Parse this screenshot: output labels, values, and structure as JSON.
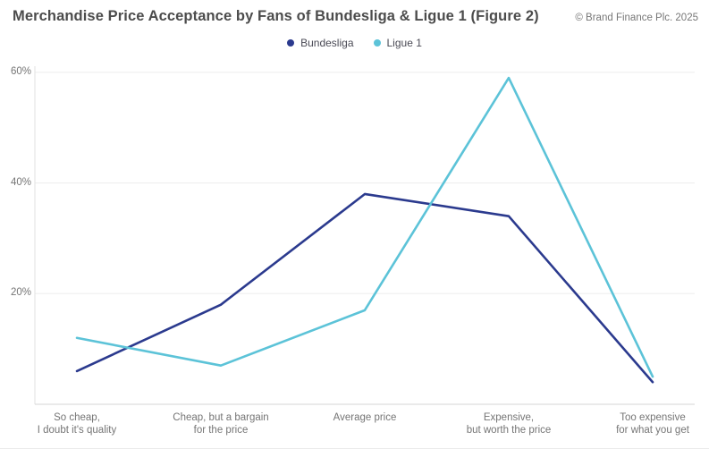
{
  "header": {
    "title": "Merchandise Price Acceptance by Fans of Bundesliga & Ligue 1 (Figure 2)",
    "copyright": "© Brand Finance Plc. 2025"
  },
  "legend": {
    "items": [
      {
        "label": "Bundesliga",
        "color": "#2B3A8E"
      },
      {
        "label": "Ligue 1",
        "color": "#5CC3D8"
      }
    ]
  },
  "chart_data": {
    "type": "line",
    "title": "Merchandise Price Acceptance by Fans of Bundesliga & Ligue 1 (Figure 2)",
    "categories": [
      "So cheap,\nI doubt it's quality",
      "Cheap, but a bargain\nfor the price",
      "Average price",
      "Expensive,\nbut worth the price",
      "Too expensive\nfor what you get"
    ],
    "series": [
      {
        "name": "Bundesliga",
        "color": "#2B3A8E",
        "values": [
          6,
          18,
          38,
          34,
          4
        ]
      },
      {
        "name": "Ligue 1",
        "color": "#5CC3D8",
        "values": [
          12,
          7,
          17,
          59,
          5
        ]
      }
    ],
    "xlabel": "",
    "ylabel": "",
    "ylim": [
      0,
      62
    ],
    "yticks": [
      {
        "value": 20,
        "label": "20%"
      },
      {
        "value": 40,
        "label": "40%"
      },
      {
        "value": 60,
        "label": "60%"
      }
    ],
    "grid": true,
    "legend_position": "top-center"
  },
  "colors": {
    "grid": "#ededed",
    "axis_vertical": "#e2e2e2",
    "axis_baseline": "#d6d6d6",
    "tick_text": "#757575",
    "title_text": "#4c4c4c"
  }
}
